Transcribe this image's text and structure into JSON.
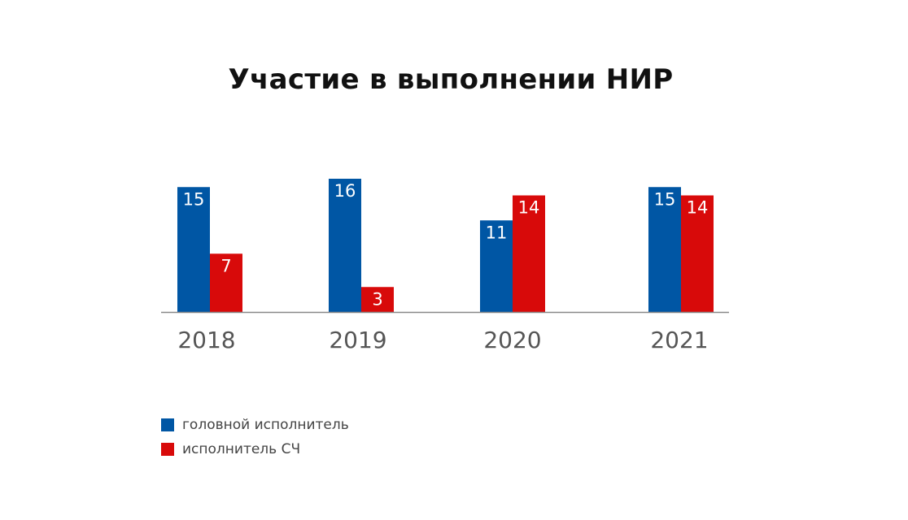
{
  "chart_data": {
    "type": "bar",
    "title": "Участие в выполнении НИР",
    "categories": [
      "2018",
      "2019",
      "2020",
      "2021"
    ],
    "series": [
      {
        "name": "головной исполнитель",
        "values": [
          15,
          16,
          11,
          15
        ],
        "color": "#0056a4"
      },
      {
        "name": "исполнитель СЧ",
        "values": [
          7,
          3,
          14,
          14
        ],
        "color": "#d80a0a"
      }
    ],
    "xlabel": "",
    "ylabel": "",
    "grid": false,
    "legend": "bottom-left"
  }
}
